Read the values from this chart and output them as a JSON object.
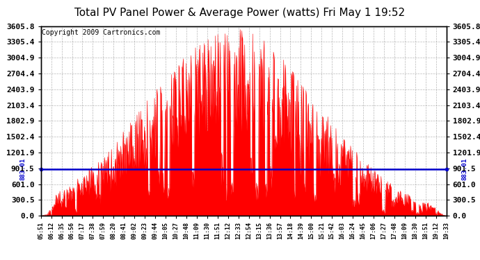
{
  "title": "Total PV Panel Power & Average Power (watts) Fri May 1 19:52",
  "copyright": "Copyright 2009 Cartronics.com",
  "avg_power": 883.01,
  "y_max": 3605.8,
  "y_min": 0.0,
  "yticks": [
    0.0,
    300.5,
    601.0,
    901.5,
    1201.9,
    1502.4,
    1802.9,
    2103.4,
    2403.9,
    2704.4,
    3004.9,
    3305.4,
    3605.8
  ],
  "xtick_labels": [
    "05:51",
    "06:12",
    "06:35",
    "06:56",
    "07:17",
    "07:38",
    "07:59",
    "08:20",
    "08:41",
    "09:02",
    "09:23",
    "09:44",
    "10:05",
    "10:27",
    "10:48",
    "11:09",
    "11:30",
    "11:51",
    "12:12",
    "12:33",
    "12:54",
    "13:15",
    "13:36",
    "13:57",
    "14:18",
    "14:39",
    "15:00",
    "15:21",
    "15:42",
    "16:03",
    "16:24",
    "16:45",
    "17:06",
    "17:27",
    "17:48",
    "18:09",
    "18:30",
    "18:51",
    "19:12",
    "19:33"
  ],
  "fill_color": "#ff0000",
  "line_color": "#ff0000",
  "avg_line_color": "#0000cc",
  "background_color": "#ffffff",
  "grid_color": "#888888",
  "title_fontsize": 11,
  "copyright_fontsize": 7,
  "ytick_fontsize": 8,
  "xtick_fontsize": 6
}
